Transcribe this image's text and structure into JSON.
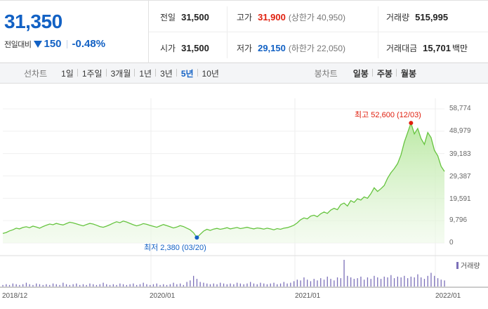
{
  "quote": {
    "price": "31,350",
    "change_label": "전일대비",
    "change_value": "150",
    "change_pct": "-0.48%",
    "stats": {
      "prev_close": {
        "label": "전일",
        "value": "31,500"
      },
      "high": {
        "label": "고가",
        "value": "31,900",
        "sub": "(상한가 40,950)"
      },
      "volume": {
        "label": "거래량",
        "value": "515,995"
      },
      "open": {
        "label": "시가",
        "value": "31,500"
      },
      "low": {
        "label": "저가",
        "value": "29,150",
        "sub": "(하한가 22,050)"
      },
      "amount": {
        "label": "거래대금",
        "value": "15,701",
        "unit": "백만"
      }
    },
    "up_color": "#e0200f",
    "down_color": "#1261c4"
  },
  "tabs": {
    "line_label": "선차트",
    "line_items": [
      "1일",
      "1주일",
      "3개월",
      "1년",
      "3년",
      "5년",
      "10년"
    ],
    "active_index": 5,
    "candle_label": "봉차트",
    "candle_items": [
      "일봉",
      "주봉",
      "월봉"
    ]
  },
  "chart_data": {
    "type": "area",
    "y_ticks": [
      "58,774",
      "48,979",
      "39,183",
      "29,387",
      "19,591",
      "9,796",
      "0"
    ],
    "ylim": [
      0,
      58774
    ],
    "x_ticks": [
      "2018/12",
      "2020/01",
      "2021/01",
      "2022/01"
    ],
    "high_annotation": "최고 52,600 (12/03)",
    "low_annotation": "최저 2,380 (03/20)",
    "series": [
      {
        "values": [
          4200,
          4600,
          5300,
          5800,
          6500,
          6200,
          6800,
          7100,
          6700,
          7400,
          7000,
          6500,
          7200,
          7800,
          8300,
          8000,
          8600,
          8200,
          7900,
          8500,
          9100,
          8800,
          8400,
          7900,
          7500,
          8100,
          8600,
          8300,
          7800,
          7200,
          6900,
          7400,
          8000,
          8700,
          9300,
          8900,
          9600,
          9200,
          8600,
          8000,
          7500,
          7900,
          8500,
          8200,
          7700,
          7300,
          6900,
          7500,
          8100,
          7600,
          7100,
          6600,
          7000,
          7600,
          7200,
          6500,
          5800,
          4500,
          2380,
          3800,
          5200,
          6000,
          5500,
          6100,
          6400,
          6000,
          6300,
          6700,
          6200,
          6500,
          6800,
          6300,
          6600,
          6900,
          6500,
          6200,
          6600,
          6400,
          6100,
          6500,
          6200,
          5800,
          6300,
          6000,
          6500,
          6700,
          7200,
          7800,
          8800,
          10200,
          11000,
          10600,
          11800,
          12200,
          11500,
          12800,
          13600,
          13000,
          14400,
          15200,
          14600,
          16800,
          17500,
          16200,
          18600,
          17800,
          19400,
          18800,
          20200,
          19600,
          21600,
          24200,
          22600,
          23800,
          25200,
          28400,
          30800,
          32600,
          34800,
          38600,
          44200,
          48400,
          52600,
          47800,
          50200,
          45800,
          43200,
          48400,
          46200,
          40600,
          38200,
          33600,
          31350
        ],
        "color": "#66c43f"
      }
    ],
    "volume": {
      "values": [
        2,
        3,
        2,
        4,
        3,
        2,
        3,
        5,
        3,
        2,
        4,
        3,
        2,
        3,
        2,
        4,
        3,
        2,
        5,
        3,
        2,
        3,
        4,
        2,
        3,
        2,
        4,
        3,
        2,
        3,
        5,
        3,
        2,
        3,
        2,
        4,
        3,
        2,
        3,
        4,
        2,
        3,
        5,
        3,
        2,
        3,
        4,
        2,
        3,
        2,
        3,
        5,
        3,
        4,
        2,
        6,
        8,
        14,
        10,
        6,
        5,
        4,
        3,
        4,
        3,
        5,
        4,
        3,
        4,
        3,
        5,
        4,
        3,
        4,
        6,
        4,
        3,
        5,
        4,
        3,
        4,
        5,
        3,
        4,
        6,
        4,
        5,
        7,
        9,
        8,
        12,
        9,
        7,
        10,
        8,
        11,
        9,
        13,
        10,
        8,
        12,
        11,
        35,
        14,
        12,
        10,
        11,
        13,
        9,
        12,
        10,
        14,
        12,
        10,
        13,
        12,
        15,
        11,
        13,
        12,
        14,
        11,
        13,
        12,
        16,
        12,
        10,
        14,
        18,
        14,
        11,
        9,
        8
      ],
      "label": "거래량",
      "color": "#7b6fb8"
    }
  }
}
